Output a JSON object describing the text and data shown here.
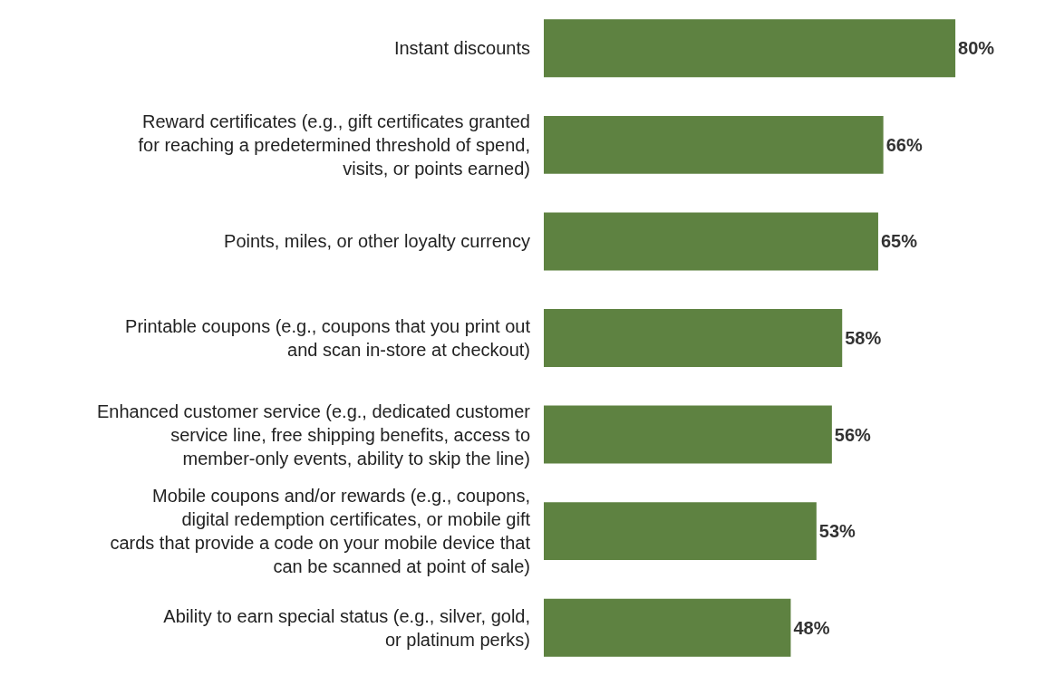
{
  "chart_data": {
    "type": "bar",
    "orientation": "horizontal",
    "grid": false,
    "tick_labels": "y",
    "categories": [
      "Instant discounts",
      "Reward certificates (e.g., gift certificates granted for reaching a predetermined threshold of spend, visits, or points earned)",
      "Points, miles, or other loyalty currency",
      "Printable coupons (e.g., coupons that you print out and scan in-store at checkout)",
      "Enhanced customer service (e.g., dedicated customer service line, free shipping benefits, access to member-only events, ability to skip the line)",
      "Mobile coupons and/or rewards (e.g., coupons, digital redemption certificates, or mobile gift cards that provide a code on your mobile device that can be scanned at point of sale)",
      "Ability to earn special status (e.g., silver, gold, or platinum perks)"
    ],
    "series": [
      {
        "color": "#5e8241",
        "values": [
          80,
          66,
          65,
          58,
          56,
          53,
          48
        ],
        "value_labels": [
          "80%",
          "66%",
          "65%",
          "58%",
          "56%",
          "53%",
          "48%"
        ]
      }
    ]
  }
}
